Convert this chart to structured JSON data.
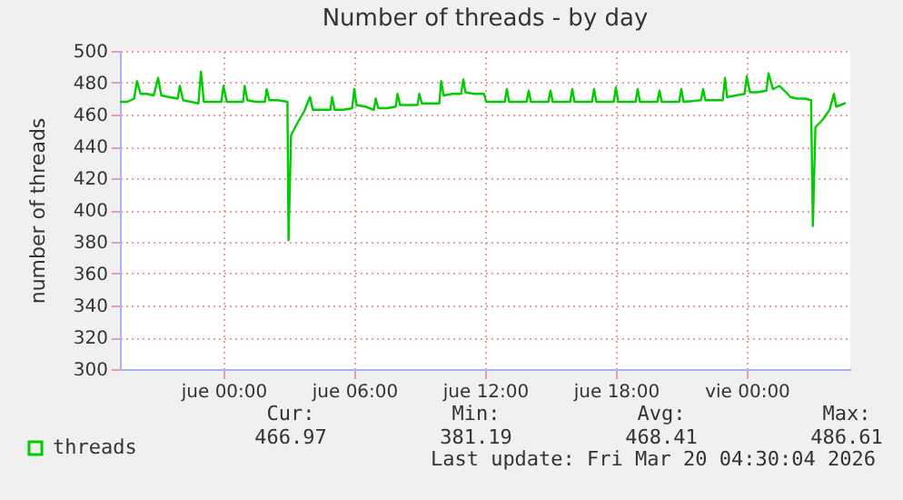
{
  "chart_data": {
    "type": "line",
    "title": "Number of threads - by day",
    "ylabel": "number of threads",
    "x": [
      "2026-03-18T19:15",
      "2026-03-18T19:36",
      "2026-03-18T19:54",
      "2026-03-18T20:02",
      "2026-03-18T20:12",
      "2026-03-18T20:30",
      "2026-03-18T20:48",
      "2026-03-18T21:00",
      "2026-03-18T21:09",
      "2026-03-18T21:30",
      "2026-03-18T21:54",
      "2026-03-18T22:00",
      "2026-03-18T22:09",
      "2026-03-18T22:30",
      "2026-03-18T22:51",
      "2026-03-18T22:58",
      "2026-03-18T23:06",
      "2026-03-18T23:30",
      "2026-03-18T23:54",
      "2026-03-19T00:00",
      "2026-03-19T00:09",
      "2026-03-19T00:36",
      "2026-03-19T00:54",
      "2026-03-19T00:58",
      "2026-03-19T01:06",
      "2026-03-19T01:30",
      "2026-03-19T01:54",
      "2026-03-19T01:59",
      "2026-03-19T02:06",
      "2026-03-19T02:30",
      "2026-03-19T02:56",
      "2026-03-19T02:59",
      "2026-03-19T03:06",
      "2026-03-19T03:24",
      "2026-03-19T03:42",
      "2026-03-19T03:58",
      "2026-03-19T04:06",
      "2026-03-19T04:30",
      "2026-03-19T04:54",
      "2026-03-19T04:59",
      "2026-03-19T05:06",
      "2026-03-19T05:30",
      "2026-03-19T05:54",
      "2026-03-19T06:00",
      "2026-03-19T06:06",
      "2026-03-19T06:30",
      "2026-03-19T06:54",
      "2026-03-19T06:59",
      "2026-03-19T07:06",
      "2026-03-19T07:30",
      "2026-03-19T07:54",
      "2026-03-19T07:59",
      "2026-03-19T08:06",
      "2026-03-19T08:30",
      "2026-03-19T08:54",
      "2026-03-19T08:59",
      "2026-03-19T09:06",
      "2026-03-19T09:30",
      "2026-03-19T09:54",
      "2026-03-19T09:59",
      "2026-03-19T10:06",
      "2026-03-19T10:30",
      "2026-03-19T10:54",
      "2026-03-19T11:00",
      "2026-03-19T11:06",
      "2026-03-19T11:30",
      "2026-03-19T11:57",
      "2026-03-19T12:03",
      "2026-03-19T12:54",
      "2026-03-19T13:00",
      "2026-03-19T13:06",
      "2026-03-19T13:54",
      "2026-03-19T14:00",
      "2026-03-19T14:06",
      "2026-03-19T14:54",
      "2026-03-19T15:00",
      "2026-03-19T15:06",
      "2026-03-19T15:54",
      "2026-03-19T16:00",
      "2026-03-19T16:06",
      "2026-03-19T16:54",
      "2026-03-19T17:00",
      "2026-03-19T17:06",
      "2026-03-19T17:54",
      "2026-03-19T18:00",
      "2026-03-19T18:06",
      "2026-03-19T18:54",
      "2026-03-19T19:00",
      "2026-03-19T19:06",
      "2026-03-19T19:54",
      "2026-03-19T20:00",
      "2026-03-19T20:06",
      "2026-03-19T20:54",
      "2026-03-19T21:00",
      "2026-03-19T21:06",
      "2026-03-19T21:54",
      "2026-03-19T22:00",
      "2026-03-19T22:06",
      "2026-03-19T22:54",
      "2026-03-19T23:00",
      "2026-03-19T23:06",
      "2026-03-19T23:30",
      "2026-03-19T23:54",
      "2026-03-20T00:00",
      "2026-03-20T00:09",
      "2026-03-20T00:30",
      "2026-03-20T00:54",
      "2026-03-20T01:00",
      "2026-03-20T01:12",
      "2026-03-20T01:30",
      "2026-03-20T01:48",
      "2026-03-20T02:00",
      "2026-03-20T02:18",
      "2026-03-20T02:42",
      "2026-03-20T02:57",
      "2026-03-20T03:02",
      "2026-03-20T03:09",
      "2026-03-20T03:30",
      "2026-03-20T03:48",
      "2026-03-20T04:00",
      "2026-03-20T04:06",
      "2026-03-20T04:30"
    ],
    "series": [
      {
        "name": "threads",
        "color": "#00cc00",
        "values": [
          468,
          468,
          470,
          481,
          473,
          473,
          472,
          483,
          472,
          471,
          470,
          478,
          469,
          468,
          467,
          487,
          468,
          468,
          468,
          478,
          468,
          468,
          468,
          478,
          469,
          468,
          468,
          476,
          469,
          469,
          468,
          381,
          447,
          455,
          462,
          471,
          463,
          463,
          463,
          471,
          463,
          463,
          464,
          476,
          466,
          465,
          463,
          470,
          464,
          464,
          465,
          473,
          466,
          466,
          466,
          473,
          467,
          467,
          467,
          481,
          472,
          473,
          473,
          482,
          474,
          473,
          473,
          468,
          468,
          476,
          468,
          468,
          475,
          468,
          468,
          475,
          468,
          468,
          476,
          468,
          468,
          476,
          468,
          468,
          477,
          468,
          468,
          476,
          468,
          468,
          475,
          468,
          468,
          476,
          468,
          469,
          476,
          469,
          469,
          483,
          471,
          472,
          473,
          484,
          474,
          474,
          475,
          486,
          476,
          478,
          474,
          471,
          470,
          470,
          469,
          390,
          452,
          457,
          463,
          473,
          465,
          467
        ]
      }
    ],
    "xlim": [
      "2026-03-18T19:15",
      "2026-03-20T04:45"
    ],
    "xticks": [
      {
        "value": "2026-03-19T00:00",
        "label": "jue 00:00"
      },
      {
        "value": "2026-03-19T06:00",
        "label": "jue 06:00"
      },
      {
        "value": "2026-03-19T12:00",
        "label": "jue 12:00"
      },
      {
        "value": "2026-03-19T18:00",
        "label": "jue 18:00"
      },
      {
        "value": "2026-03-20T00:00",
        "label": "vie 00:00"
      }
    ],
    "ylim": [
      300,
      500
    ],
    "yticks": [
      300,
      320,
      340,
      360,
      380,
      400,
      420,
      440,
      460,
      480,
      500
    ],
    "grid": true,
    "legend": "bottom left",
    "annotations": [
      "Cur:",
      "Min:",
      "Avg:",
      "Max:",
      "466.97",
      "381.19",
      "468.41",
      "486.61",
      "Last update: Fri Mar 20 04:30:04 2026"
    ]
  }
}
